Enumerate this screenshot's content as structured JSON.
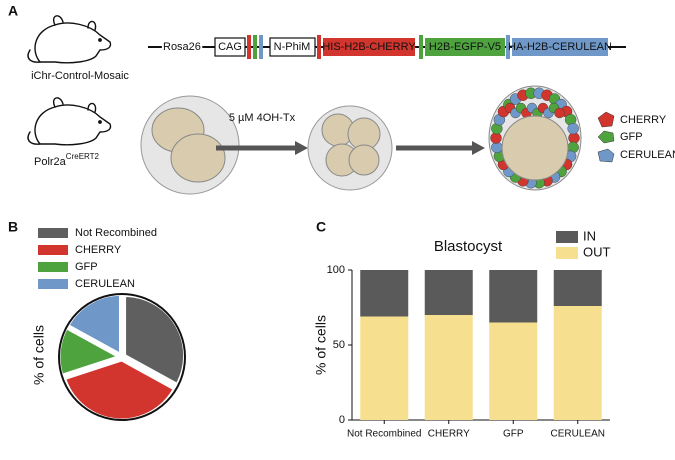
{
  "panel_a": {
    "label": "A",
    "construct": {
      "locus": "Rosa26",
      "promoter": "CAG",
      "stop": "N-PhiM",
      "cassettes": [
        "HIS-H2B-CHERRY",
        "H2B-EGFP-V5",
        "HA-H2B-CERULEAN"
      ]
    },
    "mouse_1": "iChr-Control-Mosaic",
    "mouse_2": {
      "name": "Polr2a",
      "superscript": "CreERT2"
    },
    "treatment": "5 µM 4OH-Tx",
    "legend": [
      "CHERRY",
      "GFP",
      "CERULEAN"
    ]
  },
  "chart_data": [
    {
      "type": "pie",
      "panel": "B",
      "ylabel": "% of cells",
      "categories": [
        "Not Recombined",
        "CHERRY",
        "GFP",
        "CERULEAN"
      ],
      "values": [
        33,
        37,
        13,
        17
      ],
      "colors": [
        "#5f5f5f",
        "#d2352d",
        "#4ea33e",
        "#6f98c9"
      ]
    },
    {
      "type": "stacked-bar",
      "panel": "C",
      "title": "Blastocyst",
      "ylabel": "% of cells",
      "categories": [
        "Not Recombined",
        "CHERRY",
        "GFP",
        "CERULEAN"
      ],
      "series": [
        {
          "name": "OUT",
          "color": "#f6e08f",
          "values": [
            69,
            70,
            65,
            76
          ]
        },
        {
          "name": "IN",
          "color": "#5a5a5a",
          "values": [
            31,
            30,
            35,
            24
          ]
        }
      ],
      "ylim": [
        0,
        100
      ],
      "yticks": [
        0,
        50,
        100
      ]
    }
  ]
}
